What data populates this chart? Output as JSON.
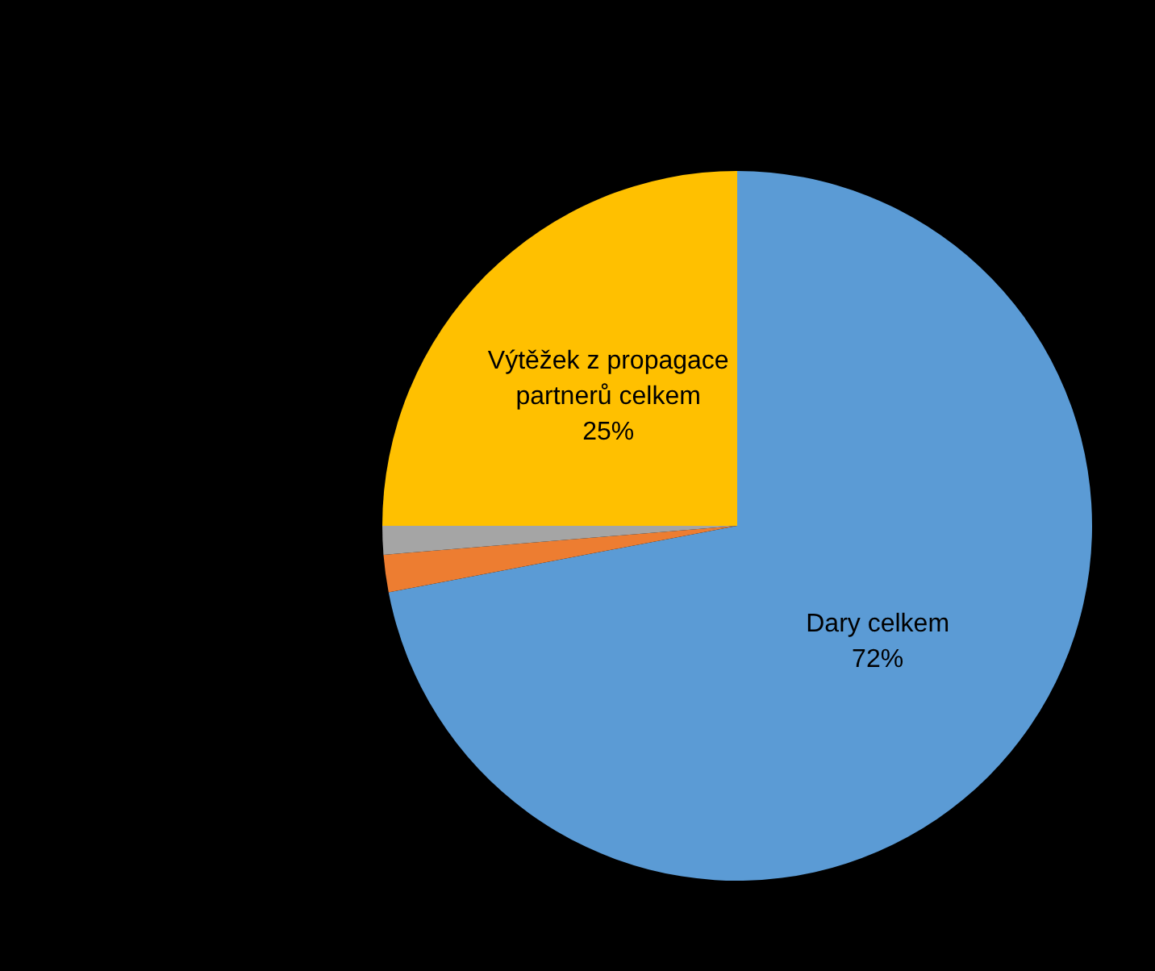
{
  "chart_data": {
    "type": "pie",
    "categories": [
      "Dary celkem",
      null,
      null,
      "Výtěžek z propagace partnerů celkem"
    ],
    "values": [
      72,
      1.7,
      1.3,
      25
    ],
    "colors": [
      "#5b9bd5",
      "#ed7d31",
      "#a5a5a5",
      "#ffc000"
    ],
    "value_labels": [
      "72%",
      null,
      null,
      "25%"
    ]
  }
}
